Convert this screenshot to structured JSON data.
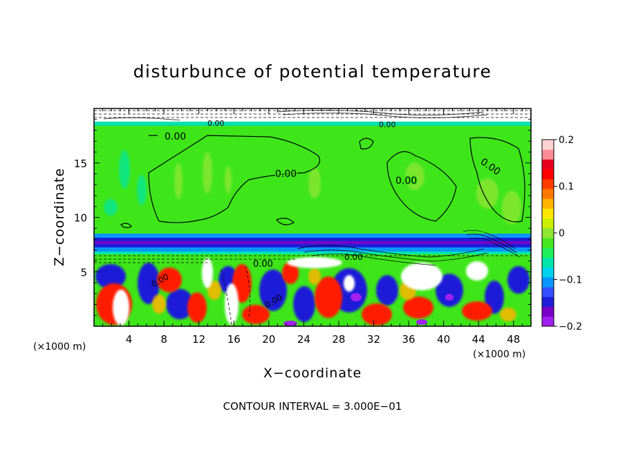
{
  "chart_data": {
    "type": "heatmap",
    "title": "disturbunce of potential temperature",
    "xlabel": "X−coordinate",
    "ylabel": "Z−coordinate",
    "x_unit_label": "(×1000 m)",
    "z_unit_label": "(×1000 m)",
    "x_range": [
      0,
      50
    ],
    "z_range": [
      0,
      20
    ],
    "x_ticks": [
      "4",
      "8",
      "12",
      "16",
      "20",
      "24",
      "28",
      "32",
      "36",
      "40",
      "44",
      "48"
    ],
    "z_ticks": [
      "5",
      "10",
      "15"
    ],
    "colorbar": {
      "range": [
        -0.2,
        0.2
      ],
      "tick_labels": [
        "0.2",
        "0.1",
        "0",
        "−0.1",
        "−0.2"
      ],
      "colors": [
        "#a020f0",
        "#7a00c8",
        "#1e1ed8",
        "#3250ff",
        "#0a96ff",
        "#00d2f0",
        "#00e6aa",
        "#1ef05a",
        "#46e61e",
        "#8ce632",
        "#c8f000",
        "#ffe600",
        "#ffb400",
        "#ff7800",
        "#ff3c00",
        "#ff0000",
        "#e6001e",
        "#ff8c96",
        "#ffd2d2"
      ]
    },
    "contour_labels": [
      "0.00",
      "0.00",
      "0.00",
      "0.00",
      "0.00",
      "0.00",
      "0.00",
      "0.00",
      "0.00",
      "0.00"
    ],
    "contour_interval_text": "CONTOUR INTERVAL = 3.000E−01"
  }
}
